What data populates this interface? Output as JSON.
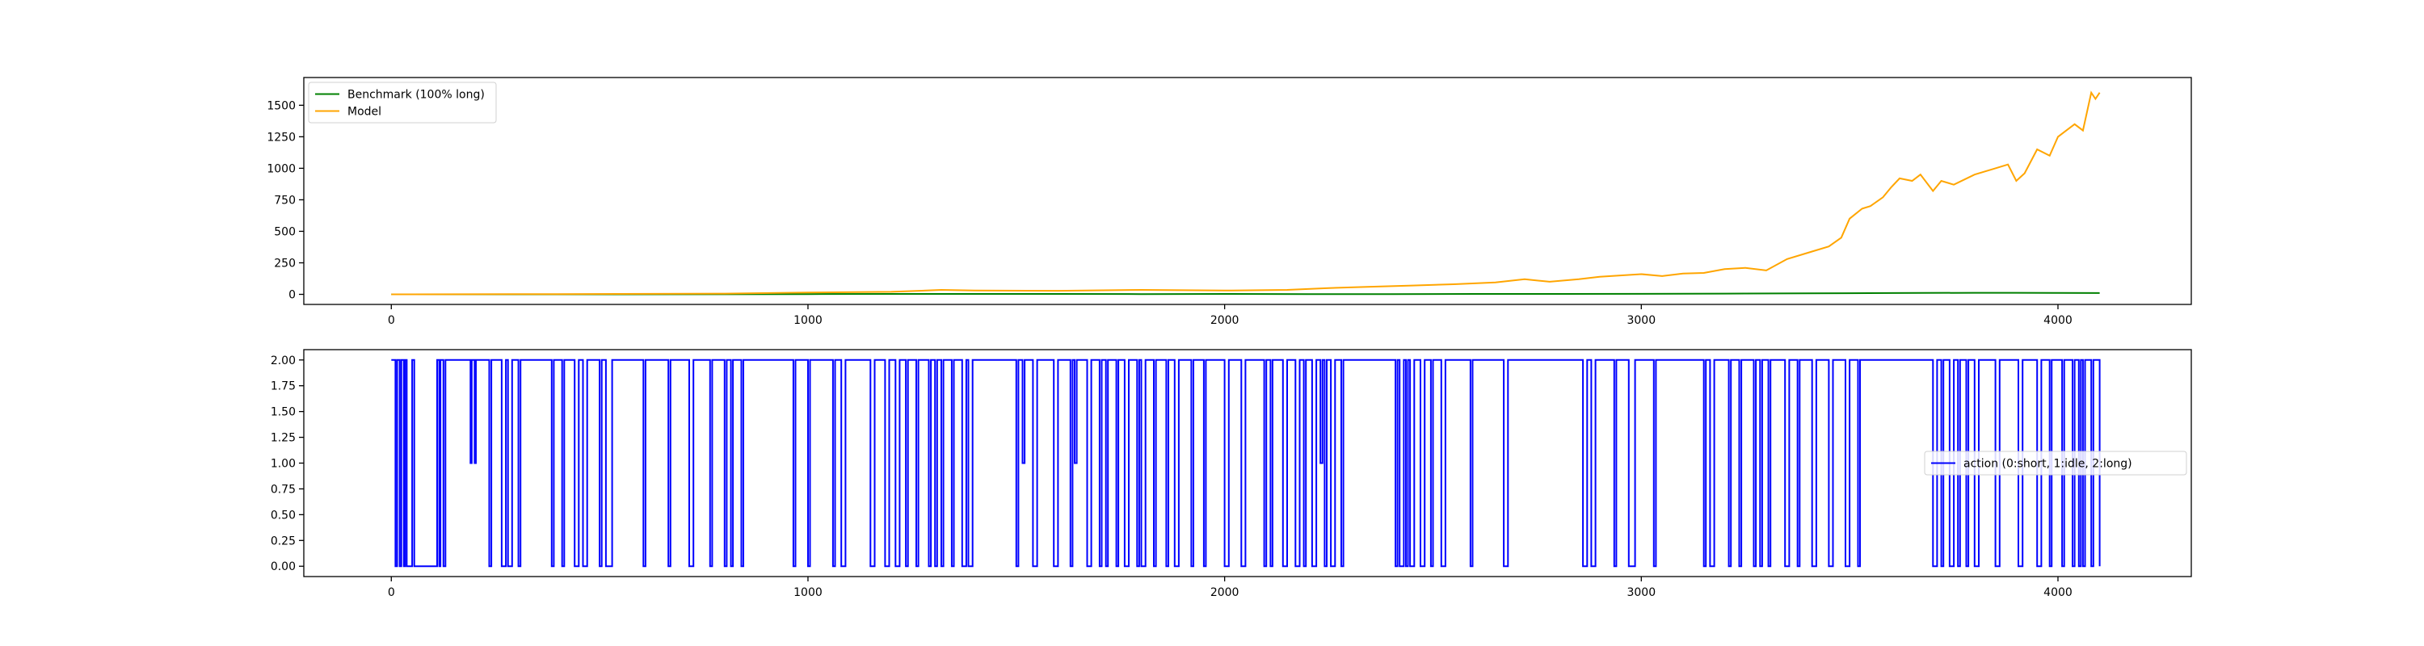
{
  "chart_data": [
    {
      "type": "line",
      "title": "",
      "xlabel": "",
      "ylabel": "",
      "xlim": [
        -210,
        4320
      ],
      "ylim": [
        -80,
        1720
      ],
      "xticks": [
        0,
        1000,
        2000,
        3000,
        4000
      ],
      "yticks": [
        0,
        250,
        500,
        750,
        1000,
        1250,
        1500
      ],
      "legend_position": "upper left",
      "grid": false,
      "series": [
        {
          "name": "Benchmark (100% long)",
          "color": "#008000",
          "x": [
            0,
            400,
            800,
            1000,
            1200,
            1400,
            1600,
            1800,
            2000,
            2200,
            2400,
            2600,
            2800,
            3000,
            3200,
            3400,
            3600,
            3800,
            3900,
            4000,
            4100
          ],
          "y": [
            0,
            0,
            1,
            2,
            3,
            3,
            3,
            2,
            3,
            2,
            2,
            3,
            3,
            4,
            6,
            8,
            10,
            12,
            12,
            11,
            10
          ]
        },
        {
          "name": "Model",
          "color": "#ffa500",
          "x": [
            0,
            400,
            800,
            1000,
            1200,
            1320,
            1400,
            1600,
            1800,
            2000,
            2150,
            2250,
            2350,
            2450,
            2550,
            2650,
            2720,
            2780,
            2850,
            2900,
            2950,
            3000,
            3050,
            3100,
            3150,
            3200,
            3250,
            3300,
            3350,
            3400,
            3450,
            3480,
            3500,
            3530,
            3550,
            3580,
            3600,
            3620,
            3650,
            3670,
            3700,
            3720,
            3750,
            3800,
            3850,
            3880,
            3900,
            3920,
            3950,
            3980,
            4000,
            4020,
            4040,
            4060,
            4080,
            4090,
            4100
          ],
          "y": [
            0,
            2,
            6,
            15,
            20,
            35,
            30,
            28,
            35,
            30,
            35,
            50,
            60,
            70,
            80,
            95,
            120,
            100,
            120,
            140,
            150,
            160,
            145,
            165,
            170,
            200,
            210,
            190,
            280,
            330,
            380,
            450,
            600,
            680,
            700,
            770,
            850,
            920,
            900,
            950,
            820,
            900,
            870,
            950,
            1000,
            1030,
            900,
            960,
            1150,
            1100,
            1250,
            1300,
            1350,
            1300,
            1600,
            1550,
            1600
          ]
        }
      ]
    },
    {
      "type": "line",
      "title": "",
      "xlabel": "",
      "ylabel": "",
      "xlim": [
        -210,
        4320
      ],
      "ylim": [
        -0.1,
        2.1
      ],
      "xticks": [
        0,
        1000,
        2000,
        3000,
        4000
      ],
      "yticks": [
        "0.00",
        "0.25",
        "0.50",
        "0.75",
        "1.00",
        "1.25",
        "1.50",
        "1.75",
        "2.00"
      ],
      "legend_position": "center right",
      "grid": false,
      "series": [
        {
          "name": "action (0:short, 1:idle, 2:long)",
          "color": "#0000ff",
          "transitions": [
            [
              0,
              2
            ],
            [
              10,
              0
            ],
            [
              14,
              2
            ],
            [
              20,
              0
            ],
            [
              24,
              2
            ],
            [
              30,
              0
            ],
            [
              33,
              2
            ],
            [
              37,
              0
            ],
            [
              50,
              2
            ],
            [
              55,
              0
            ],
            [
              110,
              2
            ],
            [
              115,
              0
            ],
            [
              118,
              2
            ],
            [
              125,
              0
            ],
            [
              130,
              2
            ],
            [
              190,
              1
            ],
            [
              193,
              2
            ],
            [
              200,
              1
            ],
            [
              203,
              2
            ],
            [
              235,
              0
            ],
            [
              240,
              2
            ],
            [
              265,
              0
            ],
            [
              275,
              2
            ],
            [
              280,
              0
            ],
            [
              290,
              2
            ],
            [
              305,
              0
            ],
            [
              310,
              2
            ],
            [
              385,
              0
            ],
            [
              390,
              2
            ],
            [
              410,
              0
            ],
            [
              415,
              2
            ],
            [
              440,
              0
            ],
            [
              450,
              2
            ],
            [
              460,
              0
            ],
            [
              470,
              2
            ],
            [
              500,
              0
            ],
            [
              505,
              2
            ],
            [
              515,
              0
            ],
            [
              530,
              2
            ],
            [
              605,
              0
            ],
            [
              610,
              2
            ],
            [
              665,
              0
            ],
            [
              670,
              2
            ],
            [
              715,
              0
            ],
            [
              725,
              2
            ],
            [
              765,
              0
            ],
            [
              770,
              2
            ],
            [
              800,
              0
            ],
            [
              805,
              2
            ],
            [
              815,
              0
            ],
            [
              820,
              2
            ],
            [
              840,
              0
            ],
            [
              845,
              2
            ],
            [
              965,
              0
            ],
            [
              970,
              2
            ],
            [
              1000,
              0
            ],
            [
              1005,
              2
            ],
            [
              1060,
              0
            ],
            [
              1065,
              2
            ],
            [
              1080,
              0
            ],
            [
              1090,
              2
            ],
            [
              1150,
              0
            ],
            [
              1160,
              2
            ],
            [
              1185,
              0
            ],
            [
              1195,
              2
            ],
            [
              1210,
              0
            ],
            [
              1220,
              2
            ],
            [
              1235,
              0
            ],
            [
              1240,
              2
            ],
            [
              1260,
              0
            ],
            [
              1265,
              2
            ],
            [
              1290,
              0
            ],
            [
              1295,
              2
            ],
            [
              1305,
              0
            ],
            [
              1310,
              2
            ],
            [
              1320,
              0
            ],
            [
              1325,
              2
            ],
            [
              1345,
              0
            ],
            [
              1350,
              2
            ],
            [
              1370,
              0
            ],
            [
              1380,
              2
            ],
            [
              1385,
              0
            ],
            [
              1395,
              2
            ],
            [
              1500,
              0
            ],
            [
              1505,
              2
            ],
            [
              1515,
              1
            ],
            [
              1520,
              2
            ],
            [
              1540,
              0
            ],
            [
              1550,
              2
            ],
            [
              1590,
              0
            ],
            [
              1600,
              2
            ],
            [
              1630,
              0
            ],
            [
              1635,
              2
            ],
            [
              1640,
              1
            ],
            [
              1645,
              2
            ],
            [
              1670,
              0
            ],
            [
              1680,
              2
            ],
            [
              1700,
              0
            ],
            [
              1705,
              2
            ],
            [
              1715,
              0
            ],
            [
              1720,
              2
            ],
            [
              1740,
              0
            ],
            [
              1745,
              2
            ],
            [
              1760,
              0
            ],
            [
              1770,
              2
            ],
            [
              1790,
              0
            ],
            [
              1795,
              2
            ],
            [
              1800,
              0
            ],
            [
              1810,
              2
            ],
            [
              1830,
              0
            ],
            [
              1835,
              2
            ],
            [
              1860,
              0
            ],
            [
              1865,
              2
            ],
            [
              1880,
              0
            ],
            [
              1890,
              2
            ],
            [
              1920,
              0
            ],
            [
              1925,
              2
            ],
            [
              1950,
              0
            ],
            [
              1955,
              2
            ],
            [
              2000,
              0
            ],
            [
              2010,
              2
            ],
            [
              2040,
              0
            ],
            [
              2050,
              2
            ],
            [
              2095,
              0
            ],
            [
              2100,
              2
            ],
            [
              2110,
              0
            ],
            [
              2115,
              2
            ],
            [
              2140,
              0
            ],
            [
              2150,
              2
            ],
            [
              2170,
              0
            ],
            [
              2180,
              2
            ],
            [
              2190,
              0
            ],
            [
              2195,
              2
            ],
            [
              2210,
              0
            ],
            [
              2220,
              2
            ],
            [
              2230,
              1
            ],
            [
              2235,
              2
            ],
            [
              2240,
              0
            ],
            [
              2245,
              2
            ],
            [
              2255,
              0
            ],
            [
              2265,
              2
            ],
            [
              2280,
              0
            ],
            [
              2285,
              2
            ],
            [
              2410,
              0
            ],
            [
              2415,
              2
            ],
            [
              2420,
              0
            ],
            [
              2430,
              2
            ],
            [
              2435,
              0
            ],
            [
              2440,
              2
            ],
            [
              2445,
              0
            ],
            [
              2455,
              2
            ],
            [
              2470,
              0
            ],
            [
              2480,
              2
            ],
            [
              2495,
              0
            ],
            [
              2500,
              2
            ],
            [
              2520,
              0
            ],
            [
              2530,
              2
            ],
            [
              2590,
              0
            ],
            [
              2595,
              2
            ],
            [
              2670,
              0
            ],
            [
              2680,
              2
            ],
            [
              2860,
              0
            ],
            [
              2870,
              2
            ],
            [
              2880,
              0
            ],
            [
              2890,
              2
            ],
            [
              2935,
              0
            ],
            [
              2940,
              2
            ],
            [
              2970,
              0
            ],
            [
              2985,
              2
            ],
            [
              3030,
              0
            ],
            [
              3035,
              2
            ],
            [
              3150,
              0
            ],
            [
              3155,
              2
            ],
            [
              3165,
              0
            ],
            [
              3175,
              2
            ],
            [
              3210,
              0
            ],
            [
              3215,
              2
            ],
            [
              3235,
              0
            ],
            [
              3240,
              2
            ],
            [
              3270,
              0
            ],
            [
              3275,
              2
            ],
            [
              3285,
              0
            ],
            [
              3290,
              2
            ],
            [
              3305,
              0
            ],
            [
              3310,
              2
            ],
            [
              3345,
              0
            ],
            [
              3355,
              2
            ],
            [
              3375,
              0
            ],
            [
              3380,
              2
            ],
            [
              3410,
              0
            ],
            [
              3420,
              2
            ],
            [
              3450,
              0
            ],
            [
              3460,
              2
            ],
            [
              3490,
              0
            ],
            [
              3500,
              2
            ],
            [
              3520,
              0
            ],
            [
              3525,
              2
            ],
            [
              3700,
              0
            ],
            [
              3710,
              2
            ],
            [
              3720,
              0
            ],
            [
              3725,
              2
            ],
            [
              3740,
              0
            ],
            [
              3750,
              2
            ],
            [
              3760,
              0
            ],
            [
              3765,
              2
            ],
            [
              3780,
              0
            ],
            [
              3785,
              2
            ],
            [
              3800,
              0
            ],
            [
              3810,
              2
            ],
            [
              3850,
              0
            ],
            [
              3860,
              2
            ],
            [
              3905,
              0
            ],
            [
              3915,
              2
            ],
            [
              3950,
              0
            ],
            [
              3960,
              2
            ],
            [
              3980,
              0
            ],
            [
              3985,
              2
            ],
            [
              4010,
              0
            ],
            [
              4015,
              2
            ],
            [
              4035,
              0
            ],
            [
              4040,
              2
            ],
            [
              4050,
              0
            ],
            [
              4055,
              2
            ],
            [
              4060,
              0
            ],
            [
              4065,
              2
            ],
            [
              4080,
              0
            ],
            [
              4085,
              2
            ],
            [
              4100,
              0
            ]
          ]
        }
      ]
    }
  ]
}
